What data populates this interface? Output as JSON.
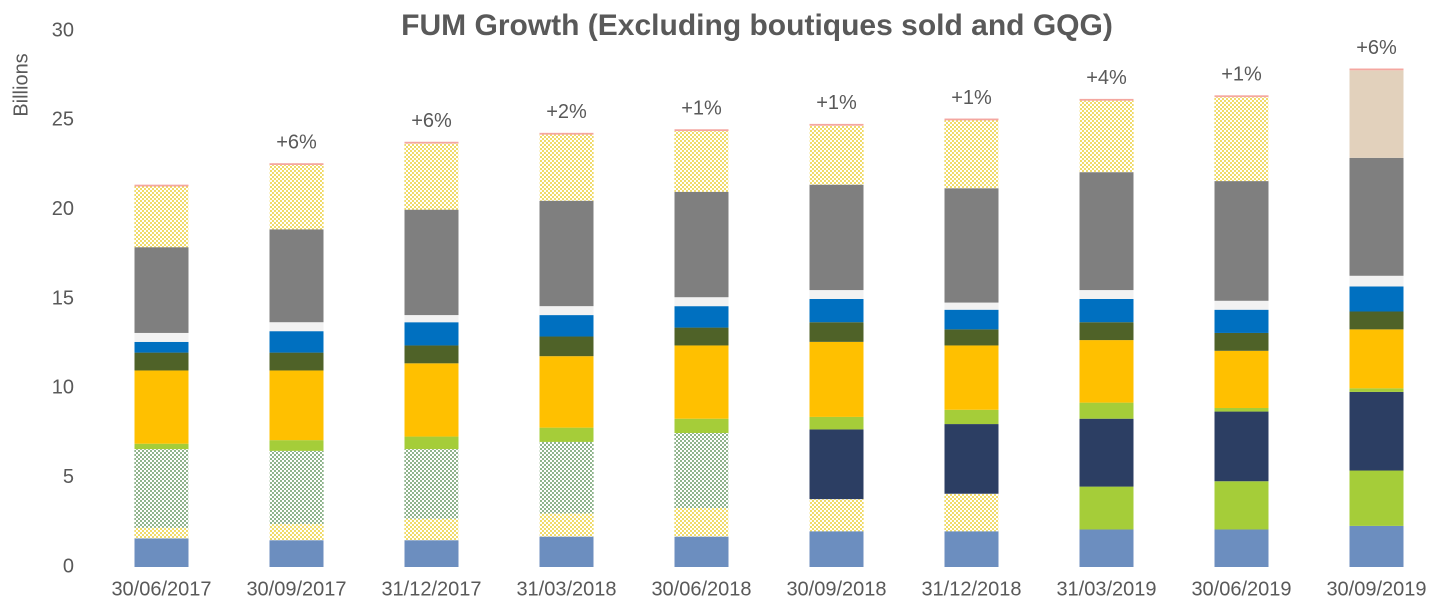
{
  "chart_data": {
    "type": "stacked_bar",
    "title": "FUM Growth (Excluding boutiques sold and GQG)",
    "y_label": "Billions",
    "categories": [
      "30/06/2017",
      "30/09/2017",
      "31/12/2017",
      "31/03/2018",
      "30/06/2018",
      "30/09/2018",
      "31/12/2018",
      "31/03/2019",
      "30/06/2019",
      "30/09/2019"
    ],
    "annotations": [
      null,
      "+6%",
      "+6%",
      "+2%",
      "+1%",
      "+1%",
      "+1%",
      "+4%",
      "+1%",
      "+6%"
    ],
    "ylim": [
      0,
      30
    ],
    "yticks": [
      0,
      5,
      10,
      15,
      20,
      25,
      30
    ],
    "grid": false,
    "series": [
      {
        "color": "#6c8ebf",
        "values": [
          1.6,
          1.5,
          1.5,
          1.7,
          1.7,
          2.0,
          2.0,
          2.1,
          2.1,
          2.3
        ]
      },
      {
        "color": "#e6c200",
        "pattern": "dotted",
        "values": [
          0.6,
          0.9,
          1.2,
          1.3,
          1.6,
          1.8,
          2.1,
          null,
          null,
          null
        ]
      },
      {
        "color": "#a5cd39",
        "values": [
          null,
          null,
          null,
          null,
          null,
          null,
          null,
          2.4,
          2.7,
          3.1
        ]
      },
      {
        "color": "#3f7f3a",
        "pattern": "dotted",
        "values": [
          4.4,
          4.1,
          3.9,
          4.0,
          4.2,
          null,
          null,
          null,
          null,
          null
        ]
      },
      {
        "color": "#2c3e63",
        "values": [
          null,
          null,
          null,
          null,
          null,
          3.9,
          3.9,
          3.8,
          3.9,
          4.4
        ]
      },
      {
        "color": "#a5cd39",
        "values": [
          0.3,
          0.6,
          0.7,
          0.8,
          0.8,
          0.7,
          0.8,
          0.9,
          0.2,
          0.2
        ]
      },
      {
        "color": "#ffc000",
        "values": [
          4.1,
          3.9,
          4.1,
          4.0,
          4.1,
          4.2,
          3.6,
          3.5,
          3.2,
          3.3
        ]
      },
      {
        "color": "#4f6228",
        "values": [
          1.0,
          1.0,
          1.0,
          1.1,
          1.0,
          1.1,
          0.9,
          1.0,
          1.0,
          1.0
        ]
      },
      {
        "color": "#0070c0",
        "values": [
          0.6,
          1.2,
          1.3,
          1.2,
          1.2,
          1.3,
          1.1,
          1.3,
          1.3,
          1.4
        ]
      },
      {
        "color": "#f2f2f2",
        "values": [
          0.5,
          0.5,
          0.4,
          0.5,
          0.5,
          0.5,
          0.4,
          0.5,
          0.5,
          0.6
        ]
      },
      {
        "color": "#7f7f7f",
        "values": [
          4.8,
          5.2,
          5.9,
          5.9,
          5.9,
          5.9,
          6.4,
          6.6,
          6.7,
          6.6
        ]
      },
      {
        "color": "#e2d1bc",
        "values": [
          null,
          null,
          null,
          null,
          null,
          null,
          null,
          null,
          null,
          4.9
        ]
      },
      {
        "color": "#e6c200",
        "pattern": "dotted",
        "values": [
          3.4,
          3.6,
          3.7,
          3.7,
          3.4,
          3.3,
          3.8,
          4.0,
          4.7,
          null
        ]
      },
      {
        "color": "#f4a7a0",
        "values": [
          0.1,
          0.1,
          0.1,
          0.1,
          0.1,
          0.1,
          0.1,
          0.1,
          0.1,
          0.1
        ]
      }
    ]
  }
}
